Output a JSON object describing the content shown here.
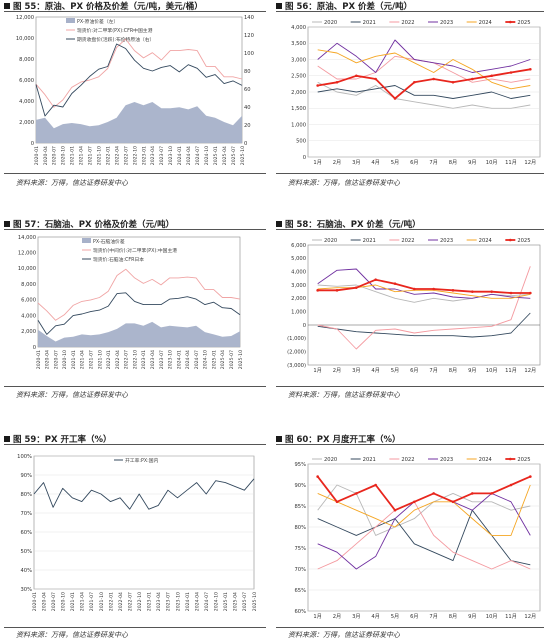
{
  "sources": {
    "text": "资料来源：万得，信达证券研发中心"
  },
  "panels": [
    {
      "title": "图 55：原油、PX 价格及价差（元/吨，美元/桶）",
      "chart_data": {
        "type": "line",
        "x": [
          "2020-01",
          "2020-04",
          "2020-07",
          "2020-10",
          "2021-01",
          "2021-04",
          "2021-07",
          "2021-10",
          "2022-01",
          "2022-04",
          "2022-07",
          "2022-10",
          "2023-01",
          "2023-04",
          "2023-07",
          "2023-10",
          "2024-01",
          "2024-04",
          "2024-07",
          "2024-10",
          "2025-01",
          "2025-04",
          "2025-07",
          "2025-10"
        ],
        "yleft_ticks": [
          "0",
          "2,000",
          "4,000",
          "6,000",
          "8,000",
          "10,000",
          "12,000"
        ],
        "yleft_lim": [
          0,
          12000
        ],
        "yright_ticks": [
          "0",
          "20",
          "40",
          "60",
          "80",
          "100",
          "120",
          "140"
        ],
        "yright_lim": [
          0,
          140
        ],
        "series": [
          {
            "name": "PX-原油价差（左）",
            "kind": "area",
            "color": "#a7b1c9",
            "values": [
              2200,
              2400,
              1400,
              1800,
              1900,
              1800,
              1600,
              1700,
              2000,
              2400,
              3600,
              3900,
              3600,
              3900,
              3300,
              3300,
              3400,
              3200,
              3500,
              2600,
              2400,
              2000,
              1700,
              2600
            ]
          },
          {
            "name": "现货价:对二甲苯(PX):CFR中国主港",
            "kind": "line",
            "color": "#f0a4a4",
            "values": [
              5600,
              4600,
              3400,
              4100,
              5300,
              5800,
              6000,
              6300,
              7100,
              9100,
              9900,
              8800,
              8100,
              8600,
              7900,
              8800,
              8800,
              8900,
              8800,
              7300,
              7300,
              6300,
              6300,
              6100
            ]
          },
          {
            "name": "期货收盘价(活跃):布伦特原油（右）",
            "kind": "line",
            "axis": "right",
            "color": "#34495e",
            "values": [
              65,
              30,
              42,
              40,
              55,
              64,
              74,
              82,
              85,
              110,
              105,
              92,
              83,
              80,
              84,
              86,
              79,
              87,
              83,
              73,
              76,
              66,
              69,
              64
            ]
          }
        ]
      }
    },
    {
      "title": "图 56：原油、PX 价差（元/吨）",
      "chart_data": {
        "type": "line",
        "x": [
          "1月",
          "2月",
          "3月",
          "4月",
          "5月",
          "6月",
          "7月",
          "8月",
          "9月",
          "10月",
          "11月",
          "12月"
        ],
        "y_ticks": [
          "0",
          "500",
          "1,000",
          "1,500",
          "2,000",
          "2,500",
          "3,000",
          "3,500",
          "4,000"
        ],
        "ylim": [
          0,
          4000
        ],
        "series": [
          {
            "name": "2020",
            "color": "#b8b8b8",
            "values": [
              2300,
              2000,
              1900,
              2200,
              1800,
              1700,
              1600,
              1500,
              1600,
              1500,
              1500,
              1600
            ]
          },
          {
            "name": "2021",
            "color": "#34495e",
            "values": [
              2000,
              2100,
              2000,
              2100,
              2200,
              1900,
              1900,
              1800,
              1900,
              2000,
              1800,
              1900
            ]
          },
          {
            "name": "2022",
            "color": "#f49aa0",
            "values": [
              2800,
              2400,
              2400,
              2600,
              3100,
              3000,
              2900,
              2600,
              2300,
              2400,
              2300,
              2400
            ]
          },
          {
            "name": "2023",
            "color": "#7030a0",
            "values": [
              3000,
              3500,
              3100,
              2600,
              3600,
              3000,
              2900,
              2800,
              2600,
              2700,
              2800,
              3000
            ]
          },
          {
            "name": "2024",
            "color": "#f5a623",
            "values": [
              3300,
              3200,
              2900,
              3100,
              3200,
              2900,
              2600,
              3000,
              2700,
              2300,
              2100,
              2200
            ]
          },
          {
            "name": "2025",
            "color": "#e8261d",
            "values": [
              2200,
              2300,
              2500,
              2400,
              1800,
              2300,
              2400,
              2300,
              2400,
              2500,
              2600,
              2700
            ]
          }
        ]
      }
    },
    {
      "title": "图 57：石脑油、PX 价格及价差（元/吨）",
      "chart_data": {
        "type": "line",
        "x": [
          "2020-01",
          "2020-04",
          "2020-07",
          "2020-10",
          "2021-01",
          "2021-04",
          "2021-07",
          "2021-10",
          "2022-01",
          "2022-04",
          "2022-07",
          "2022-10",
          "2023-01",
          "2023-04",
          "2023-07",
          "2023-10",
          "2024-01",
          "2024-04",
          "2024-07",
          "2024-10",
          "2025-01",
          "2025-04",
          "2025-07",
          "2025-10"
        ],
        "y_ticks": [
          "0",
          "2,000",
          "4,000",
          "6,000",
          "8,000",
          "10,000",
          "12,000",
          "14,000"
        ],
        "ylim": [
          0,
          14000
        ],
        "series": [
          {
            "name": "PX-石脑油价差",
            "kind": "area",
            "color": "#a7b1c9",
            "values": [
              2200,
              1400,
              700,
              1200,
              1300,
              1600,
              1500,
              1600,
              1900,
              2300,
              3000,
              3000,
              2700,
              3200,
              2500,
              2700,
              2600,
              2500,
              2700,
              1900,
              1600,
              1300,
              1400,
              2000
            ]
          },
          {
            "name": "现货价(中间价):对二甲苯(PX):中国主港",
            "kind": "line",
            "color": "#f0a4a4",
            "values": [
              5600,
              4600,
              3400,
              4100,
              5300,
              5800,
              6000,
              6300,
              7100,
              9100,
              9900,
              8800,
              8100,
              8600,
              7900,
              8800,
              8800,
              8900,
              8800,
              7300,
              7300,
              6300,
              6300,
              6100
            ]
          },
          {
            "name": "现货价:石脑油:CFR日本",
            "kind": "line",
            "color": "#34495e",
            "values": [
              3400,
              1600,
              2700,
              2900,
              4000,
              4200,
              4500,
              4700,
              5200,
              6800,
              6900,
              5800,
              5400,
              5400,
              5400,
              6100,
              6200,
              6400,
              6100,
              5400,
              5700,
              5000,
              4900,
              4100
            ]
          }
        ]
      }
    },
    {
      "title": "图 58：石脑油、PX 价差（元/吨）",
      "chart_data": {
        "type": "line",
        "x": [
          "1月",
          "2月",
          "3月",
          "4月",
          "5月",
          "6月",
          "7月",
          "8月",
          "9月",
          "10月",
          "11月",
          "12月"
        ],
        "y_ticks": [
          "(3,000)",
          "(2,000)",
          "(1,000)",
          "0",
          "1,000",
          "2,000",
          "3,000",
          "4,000",
          "5,000",
          "6,000"
        ],
        "ylim": [
          -3000,
          6000
        ],
        "series": [
          {
            "name": "2020",
            "color": "#b8b8b8",
            "values": [
              3000,
              2900,
              3000,
              2500,
              2000,
              1700,
              2000,
              1800,
              2000,
              2300,
              2200,
              2300
            ]
          },
          {
            "name": "2021",
            "color": "#34495e",
            "values": [
              -100,
              -300,
              -500,
              -600,
              -700,
              -800,
              -800,
              -800,
              -900,
              -800,
              -600,
              900
            ]
          },
          {
            "name": "2022",
            "color": "#f49aa0",
            "values": [
              0,
              -300,
              -1800,
              -400,
              -300,
              -600,
              -400,
              -300,
              -200,
              -100,
              400,
              4400
            ]
          },
          {
            "name": "2023",
            "color": "#7030a0",
            "values": [
              3100,
              4100,
              4200,
              2700,
              2700,
              2300,
              2400,
              2100,
              2000,
              2300,
              2100,
              2000
            ]
          },
          {
            "name": "2024",
            "color": "#f5a623",
            "values": [
              2700,
              2800,
              2800,
              3000,
              2500,
              2600,
              2600,
              2400,
              2200,
              2000,
              2000,
              2300
            ]
          },
          {
            "name": "2025",
            "color": "#e8261d",
            "values": [
              2600,
              2600,
              2800,
              3400,
              3100,
              2700,
              2700,
              2600,
              2500,
              2500,
              2400,
              2400
            ]
          }
        ]
      }
    },
    {
      "title": "图 59：PX 开工率（%）",
      "chart_data": {
        "type": "line",
        "x": [
          "2020-01",
          "2020-04",
          "2020-07",
          "2020-10",
          "2021-01",
          "2021-04",
          "2021-07",
          "2021-10",
          "2022-01",
          "2022-04",
          "2022-07",
          "2022-10",
          "2023-01",
          "2023-04",
          "2023-07",
          "2023-10",
          "2024-01",
          "2024-04",
          "2024-07",
          "2024-10",
          "2025-01",
          "2025-04",
          "2025-07",
          "2025-10"
        ],
        "y_ticks": [
          "30%",
          "40%",
          "50%",
          "60%",
          "70%",
          "80%",
          "90%",
          "100%"
        ],
        "ylim": [
          30,
          100
        ],
        "series": [
          {
            "name": "开工率:PX:国内",
            "color": "#34495e",
            "values": [
              80,
              86,
              73,
              83,
              78,
              76,
              82,
              80,
              76,
              78,
              72,
              80,
              72,
              74,
              82,
              78,
              82,
              86,
              80,
              87,
              86,
              84,
              82,
              88
            ]
          }
        ]
      }
    },
    {
      "title": "图 60：PX 月度开工率（%）",
      "chart_data": {
        "type": "line",
        "x": [
          "1月",
          "2月",
          "3月",
          "4月",
          "5月",
          "6月",
          "7月",
          "8月",
          "9月",
          "10月",
          "11月",
          "12月"
        ],
        "y_ticks": [
          "60%",
          "65%",
          "70%",
          "75%",
          "80%",
          "85%",
          "90%",
          "95%"
        ],
        "ylim": [
          60,
          95
        ],
        "series": [
          {
            "name": "2020",
            "color": "#b8b8b8",
            "values": [
              84,
              90,
              88,
              78,
              80,
              82,
              86,
              88,
              86,
              86,
              84,
              85
            ]
          },
          {
            "name": "2021",
            "color": "#34495e",
            "values": [
              82,
              80,
              78,
              80,
              82,
              76,
              74,
              72,
              84,
              78,
              72,
              71
            ]
          },
          {
            "name": "2022",
            "color": "#f49aa0",
            "values": [
              70,
              72,
              76,
              80,
              84,
              86,
              78,
              74,
              72,
              70,
              72,
              70
            ]
          },
          {
            "name": "2023",
            "color": "#7030a0",
            "values": [
              76,
              74,
              70,
              73,
              82,
              86,
              88,
              86,
              84,
              88,
              86,
              78
            ]
          },
          {
            "name": "2024",
            "color": "#f5a623",
            "values": [
              88,
              86,
              84,
              82,
              80,
              84,
              86,
              86,
              82,
              78,
              78,
              90
            ]
          },
          {
            "name": "2025",
            "color": "#e8261d",
            "values": [
              92,
              86,
              88,
              90,
              84,
              86,
              88,
              86,
              88,
              88,
              90,
              92
            ]
          }
        ]
      }
    }
  ]
}
